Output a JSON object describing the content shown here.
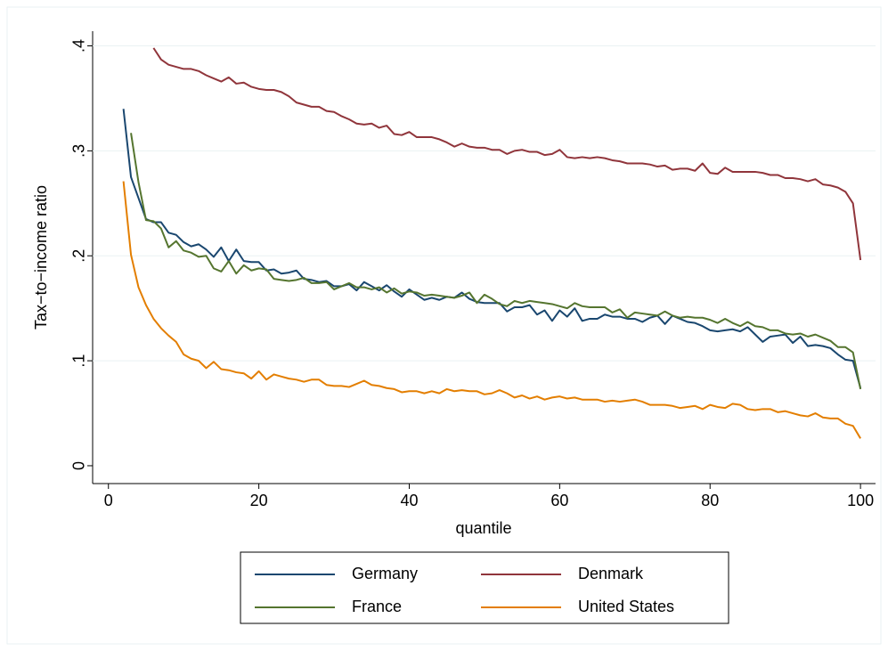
{
  "chart_data": {
    "type": "line",
    "xlabel": "quantile",
    "ylabel": "Tax−to−income ratio",
    "xlim": [
      -2.1,
      102
    ],
    "ylim": [
      -0.017,
      0.414
    ],
    "xticks": [
      0,
      20,
      40,
      60,
      80,
      100
    ],
    "yticks": [
      0,
      {
        "value": 0.1,
        "label": ".1"
      },
      {
        "value": 0.2,
        "label": ".2"
      },
      {
        "value": 0.3,
        "label": ".3"
      },
      {
        "value": 0.4,
        "label": ".4"
      }
    ],
    "grid": true,
    "legend": "bottom",
    "series": [
      {
        "name": "Germany",
        "color": "#1a476f",
        "x": [
          2,
          3,
          4,
          5,
          6,
          7,
          8,
          9,
          10,
          11,
          12,
          13,
          14,
          15,
          16,
          17,
          18,
          19,
          20,
          21,
          22,
          23,
          24,
          25,
          26,
          27,
          28,
          29,
          30,
          31,
          32,
          33,
          34,
          35,
          36,
          37,
          38,
          39,
          40,
          41,
          42,
          43,
          44,
          45,
          46,
          47,
          48,
          49,
          50,
          51,
          52,
          53,
          54,
          55,
          56,
          57,
          58,
          59,
          60,
          61,
          62,
          63,
          64,
          65,
          66,
          67,
          68,
          69,
          70,
          71,
          72,
          73,
          74,
          75,
          76,
          77,
          78,
          79,
          80,
          81,
          82,
          83,
          84,
          85,
          86,
          87,
          88,
          89,
          90,
          91,
          92,
          93,
          94,
          95,
          96,
          97,
          98,
          99,
          100
        ],
        "values": [
          0.34,
          0.275,
          0.255,
          0.235,
          0.232,
          0.232,
          0.222,
          0.22,
          0.213,
          0.209,
          0.211,
          0.206,
          0.199,
          0.208,
          0.195,
          0.206,
          0.195,
          0.194,
          0.194,
          0.186,
          0.187,
          0.183,
          0.184,
          0.186,
          0.178,
          0.177,
          0.175,
          0.176,
          0.171,
          0.171,
          0.173,
          0.167,
          0.175,
          0.171,
          0.167,
          0.172,
          0.166,
          0.161,
          0.168,
          0.163,
          0.158,
          0.16,
          0.158,
          0.161,
          0.16,
          0.165,
          0.159,
          0.156,
          0.155,
          0.155,
          0.155,
          0.147,
          0.151,
          0.151,
          0.153,
          0.144,
          0.148,
          0.138,
          0.148,
          0.142,
          0.15,
          0.138,
          0.14,
          0.14,
          0.144,
          0.142,
          0.142,
          0.14,
          0.14,
          0.137,
          0.141,
          0.143,
          0.135,
          0.143,
          0.14,
          0.137,
          0.136,
          0.133,
          0.129,
          0.128,
          0.129,
          0.13,
          0.128,
          0.132,
          0.125,
          0.118,
          0.123,
          0.124,
          0.125,
          0.117,
          0.123,
          0.114,
          0.115,
          0.114,
          0.112,
          0.106,
          0.101,
          0.1,
          0.074
        ]
      },
      {
        "name": "Denmark",
        "color": "#90353b",
        "x": [
          6,
          7,
          8,
          9,
          10,
          11,
          12,
          13,
          14,
          15,
          16,
          17,
          18,
          19,
          20,
          21,
          22,
          23,
          24,
          25,
          26,
          27,
          28,
          29,
          30,
          31,
          32,
          33,
          34,
          35,
          36,
          37,
          38,
          39,
          40,
          41,
          42,
          43,
          44,
          45,
          46,
          47,
          48,
          49,
          50,
          51,
          52,
          53,
          54,
          55,
          56,
          57,
          58,
          59,
          60,
          61,
          62,
          63,
          64,
          65,
          66,
          67,
          68,
          69,
          70,
          71,
          72,
          73,
          74,
          75,
          76,
          77,
          78,
          79,
          80,
          81,
          82,
          83,
          84,
          85,
          86,
          87,
          88,
          89,
          90,
          91,
          92,
          93,
          94,
          95,
          96,
          97,
          98,
          99,
          100
        ],
        "values": [
          0.398,
          0.387,
          0.382,
          0.38,
          0.378,
          0.378,
          0.376,
          0.372,
          0.369,
          0.366,
          0.37,
          0.364,
          0.365,
          0.361,
          0.359,
          0.358,
          0.358,
          0.356,
          0.352,
          0.346,
          0.344,
          0.342,
          0.342,
          0.338,
          0.337,
          0.333,
          0.33,
          0.326,
          0.325,
          0.326,
          0.322,
          0.324,
          0.316,
          0.315,
          0.318,
          0.313,
          0.313,
          0.313,
          0.311,
          0.308,
          0.304,
          0.307,
          0.304,
          0.303,
          0.303,
          0.301,
          0.301,
          0.297,
          0.3,
          0.301,
          0.299,
          0.299,
          0.296,
          0.297,
          0.301,
          0.294,
          0.293,
          0.294,
          0.293,
          0.294,
          0.293,
          0.291,
          0.29,
          0.288,
          0.288,
          0.288,
          0.287,
          0.285,
          0.286,
          0.282,
          0.283,
          0.283,
          0.281,
          0.288,
          0.279,
          0.278,
          0.284,
          0.28,
          0.28,
          0.28,
          0.28,
          0.279,
          0.277,
          0.277,
          0.274,
          0.274,
          0.273,
          0.271,
          0.273,
          0.268,
          0.267,
          0.265,
          0.261,
          0.25,
          0.196
        ]
      },
      {
        "name": "France",
        "color": "#55752f",
        "x": [
          3,
          4,
          5,
          6,
          7,
          8,
          9,
          10,
          11,
          12,
          13,
          14,
          15,
          16,
          17,
          18,
          19,
          20,
          21,
          22,
          23,
          24,
          25,
          26,
          27,
          28,
          29,
          30,
          31,
          32,
          33,
          34,
          35,
          36,
          37,
          38,
          39,
          40,
          41,
          42,
          43,
          44,
          45,
          46,
          47,
          48,
          49,
          50,
          51,
          52,
          53,
          54,
          55,
          56,
          57,
          58,
          59,
          60,
          61,
          62,
          63,
          64,
          65,
          66,
          67,
          68,
          69,
          70,
          71,
          72,
          73,
          74,
          75,
          76,
          77,
          78,
          79,
          80,
          81,
          82,
          83,
          84,
          85,
          86,
          87,
          88,
          89,
          90,
          91,
          92,
          93,
          94,
          95,
          96,
          97,
          98,
          99,
          100
        ],
        "values": [
          0.317,
          0.27,
          0.234,
          0.233,
          0.226,
          0.208,
          0.214,
          0.205,
          0.203,
          0.199,
          0.2,
          0.188,
          0.185,
          0.195,
          0.183,
          0.191,
          0.186,
          0.188,
          0.187,
          0.178,
          0.177,
          0.176,
          0.177,
          0.179,
          0.174,
          0.174,
          0.175,
          0.168,
          0.171,
          0.174,
          0.17,
          0.17,
          0.168,
          0.17,
          0.165,
          0.169,
          0.164,
          0.166,
          0.165,
          0.162,
          0.163,
          0.162,
          0.161,
          0.16,
          0.162,
          0.165,
          0.155,
          0.163,
          0.159,
          0.154,
          0.152,
          0.157,
          0.155,
          0.157,
          0.156,
          0.155,
          0.154,
          0.152,
          0.15,
          0.155,
          0.152,
          0.151,
          0.151,
          0.151,
          0.146,
          0.149,
          0.141,
          0.146,
          0.145,
          0.144,
          0.143,
          0.147,
          0.143,
          0.141,
          0.142,
          0.141,
          0.141,
          0.139,
          0.136,
          0.14,
          0.136,
          0.133,
          0.137,
          0.133,
          0.132,
          0.129,
          0.129,
          0.126,
          0.125,
          0.126,
          0.123,
          0.125,
          0.122,
          0.119,
          0.113,
          0.113,
          0.108,
          0.073
        ]
      },
      {
        "name": "United States",
        "color": "#e37e00",
        "x": [
          2,
          3,
          4,
          5,
          6,
          7,
          8,
          9,
          10,
          11,
          12,
          13,
          14,
          15,
          16,
          17,
          18,
          19,
          20,
          21,
          22,
          23,
          24,
          25,
          26,
          27,
          28,
          29,
          30,
          31,
          32,
          33,
          34,
          35,
          36,
          37,
          38,
          39,
          40,
          41,
          42,
          43,
          44,
          45,
          46,
          47,
          48,
          49,
          50,
          51,
          52,
          53,
          54,
          55,
          56,
          57,
          58,
          59,
          60,
          61,
          62,
          63,
          64,
          65,
          66,
          67,
          68,
          69,
          70,
          71,
          72,
          73,
          74,
          75,
          76,
          77,
          78,
          79,
          80,
          81,
          82,
          83,
          84,
          85,
          86,
          87,
          88,
          89,
          90,
          91,
          92,
          93,
          94,
          95,
          96,
          97,
          98,
          99,
          100
        ],
        "values": [
          0.271,
          0.201,
          0.17,
          0.153,
          0.14,
          0.131,
          0.124,
          0.118,
          0.106,
          0.102,
          0.1,
          0.093,
          0.099,
          0.092,
          0.091,
          0.089,
          0.088,
          0.083,
          0.09,
          0.082,
          0.087,
          0.085,
          0.083,
          0.082,
          0.08,
          0.082,
          0.082,
          0.077,
          0.076,
          0.076,
          0.075,
          0.078,
          0.081,
          0.077,
          0.076,
          0.074,
          0.073,
          0.07,
          0.071,
          0.071,
          0.069,
          0.071,
          0.069,
          0.073,
          0.071,
          0.072,
          0.071,
          0.071,
          0.068,
          0.069,
          0.072,
          0.069,
          0.065,
          0.067,
          0.064,
          0.066,
          0.063,
          0.065,
          0.066,
          0.064,
          0.065,
          0.063,
          0.063,
          0.063,
          0.061,
          0.062,
          0.061,
          0.062,
          0.063,
          0.061,
          0.058,
          0.058,
          0.058,
          0.057,
          0.055,
          0.056,
          0.057,
          0.054,
          0.058,
          0.056,
          0.055,
          0.059,
          0.058,
          0.054,
          0.053,
          0.054,
          0.054,
          0.051,
          0.052,
          0.05,
          0.048,
          0.047,
          0.05,
          0.046,
          0.045,
          0.045,
          0.04,
          0.038,
          0.026
        ]
      }
    ]
  }
}
